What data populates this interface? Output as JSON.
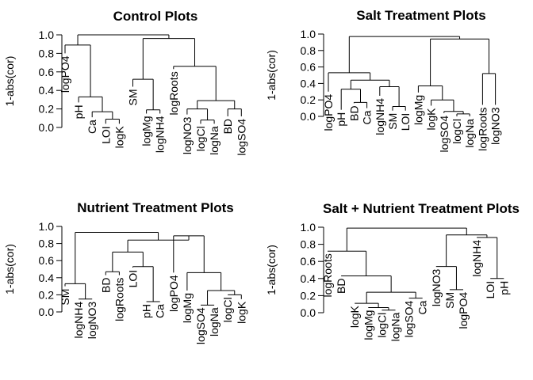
{
  "chart_data": [
    {
      "type": "dendrogram",
      "title": "Control Plots",
      "ylabel": "1-abs(cor)",
      "ylim": [
        0,
        1
      ],
      "yticks": [
        "0.0",
        "0.2",
        "0.4",
        "0.6",
        "0.8",
        "1.0"
      ],
      "leaves": [
        {
          "label": "logPO4",
          "height": 0.8
        },
        {
          "label": "pH",
          "height": 0.27
        },
        {
          "label": "Ca",
          "height": 0.11
        },
        {
          "label": "LOI",
          "height": 0.04
        },
        {
          "label": "logK",
          "height": 0.04
        },
        {
          "label": "SM",
          "height": 0.44
        },
        {
          "label": "logMg",
          "height": 0.15
        },
        {
          "label": "logNH4",
          "height": 0.15
        },
        {
          "label": "logRoots",
          "height": 0.63
        },
        {
          "label": "logNO3",
          "height": 0.14
        },
        {
          "label": "logCl",
          "height": 0.04
        },
        {
          "label": "logNa",
          "height": 0.04
        },
        {
          "label": "BD",
          "height": 0.12
        },
        {
          "label": "logSO4",
          "height": 0.12
        }
      ],
      "merges": [
        {
          "a": "L4",
          "b": "L5",
          "height": 0.09
        },
        {
          "a": "L3",
          "b": "m1",
          "height": 0.17
        },
        {
          "a": "L2",
          "b": "m2",
          "height": 0.33
        },
        {
          "a": "L1",
          "b": "m3",
          "height": 0.89
        },
        {
          "a": "L7",
          "b": "L8",
          "height": 0.19
        },
        {
          "a": "L6",
          "b": "m5",
          "height": 0.52
        },
        {
          "a": "L11",
          "b": "L12",
          "height": 0.08
        },
        {
          "a": "L13",
          "b": "L14",
          "height": 0.2
        },
        {
          "a": "L10",
          "b": "m7",
          "height": 0.2
        },
        {
          "a": "m9",
          "b": "m8",
          "height": 0.29
        },
        {
          "a": "L9",
          "b": "m10",
          "height": 0.66
        },
        {
          "a": "m6",
          "b": "m11",
          "height": 0.96
        },
        {
          "a": "m4",
          "b": "m12",
          "height": 1.0
        }
      ]
    },
    {
      "type": "dendrogram",
      "title": "Salt Treatment Plots",
      "ylabel": "1-abs(cor)",
      "ylim": [
        0,
        1
      ],
      "yticks": [
        "0.0",
        "0.2",
        "0.4",
        "0.6",
        "0.8",
        "1.0"
      ],
      "leaves": [
        {
          "label": "logPO4",
          "height": 0.3
        },
        {
          "label": "pH",
          "height": 0.08
        },
        {
          "label": "BD",
          "height": 0.16
        },
        {
          "label": "Ca",
          "height": 0.1
        },
        {
          "label": "logNH4",
          "height": 0.25
        },
        {
          "label": "SM",
          "height": 0.07
        },
        {
          "label": "LOI",
          "height": 0.07
        },
        {
          "label": "logMg",
          "height": 0.29
        },
        {
          "label": "logK",
          "height": 0.13
        },
        {
          "label": "logSO4",
          "height": 0.04
        },
        {
          "label": "logCl",
          "height": 0.0
        },
        {
          "label": "logNa",
          "height": 0.0
        },
        {
          "label": "logRoots",
          "height": 0.14
        },
        {
          "label": "logNO3",
          "height": 0.14
        }
      ],
      "merges": [
        {
          "a": "L3",
          "b": "L4",
          "height": 0.17
        },
        {
          "a": "L2",
          "b": "m1",
          "height": 0.33
        },
        {
          "a": "L6",
          "b": "L7",
          "height": 0.12
        },
        {
          "a": "L5",
          "b": "m3",
          "height": 0.36
        },
        {
          "a": "m2",
          "b": "m4",
          "height": 0.44
        },
        {
          "a": "L1",
          "b": "m5",
          "height": 0.53
        },
        {
          "a": "L11",
          "b": "L12",
          "height": 0.03
        },
        {
          "a": "L10",
          "b": "m7",
          "height": 0.06
        },
        {
          "a": "L9",
          "b": "m8",
          "height": 0.2
        },
        {
          "a": "L8",
          "b": "m9",
          "height": 0.37
        },
        {
          "a": "L13",
          "b": "L14",
          "height": 0.52
        },
        {
          "a": "m10",
          "b": "m11",
          "height": 0.94
        },
        {
          "a": "m6",
          "b": "m12",
          "height": 0.97
        }
      ]
    },
    {
      "type": "dendrogram",
      "title": "Nutrient Treatment Plots",
      "ylabel": "1-abs(cor)",
      "ylim": [
        0,
        1
      ],
      "yticks": [
        "0.0",
        "0.2",
        "0.4",
        "0.6",
        "0.8",
        "1.0"
      ],
      "leaves": [
        {
          "label": "SM",
          "height": 0.3
        },
        {
          "label": "logNH4",
          "height": 0.15
        },
        {
          "label": "logNO3",
          "height": 0.15
        },
        {
          "label": "BD",
          "height": 0.43
        },
        {
          "label": "logRoots",
          "height": 0.43
        },
        {
          "label": "LOI",
          "height": 0.52
        },
        {
          "label": "pH",
          "height": 0.12
        },
        {
          "label": "Ca",
          "height": 0.12
        },
        {
          "label": "logPO4",
          "height": 0.46
        },
        {
          "label": "logMg",
          "height": 0.25
        },
        {
          "label": "logSO4",
          "height": 0.08
        },
        {
          "label": "logNa",
          "height": 0.08
        },
        {
          "label": "logCl",
          "height": 0.2
        },
        {
          "label": "logK",
          "height": 0.15
        }
      ],
      "merges": [
        {
          "a": "L2",
          "b": "L3",
          "height": 0.15
        },
        {
          "a": "L1",
          "b": "m1",
          "height": 0.33
        },
        {
          "a": "L4",
          "b": "L5",
          "height": 0.47
        },
        {
          "a": "L7",
          "b": "L8",
          "height": 0.12
        },
        {
          "a": "L6",
          "b": "m4",
          "height": 0.53
        },
        {
          "a": "m3",
          "b": "m5",
          "height": 0.7
        },
        {
          "a": "L11",
          "b": "L12",
          "height": 0.08
        },
        {
          "a": "L13",
          "b": "L14",
          "height": 0.2
        },
        {
          "a": "m7",
          "b": "m8",
          "height": 0.25
        },
        {
          "a": "L10",
          "b": "m9",
          "height": 0.46
        },
        {
          "a": "L9",
          "b": "m10",
          "height": 0.89
        },
        {
          "a": "m6",
          "b": "m11",
          "height": 0.84
        },
        {
          "a": "m2",
          "b": "m12",
          "height": 0.93
        }
      ]
    },
    {
      "type": "dendrogram",
      "title": "Salt + Nutrient Treatment Plots",
      "ylabel": "1-abs(cor)",
      "ylim": [
        0,
        1
      ],
      "yticks": [
        "0.0",
        "0.2",
        "0.4",
        "0.6",
        "0.8",
        "1.0"
      ],
      "leaves": [
        {
          "label": "logRoots",
          "height": 0.72
        },
        {
          "label": "BD",
          "height": 0.43
        },
        {
          "label": "logK",
          "height": 0.11
        },
        {
          "label": "logMg",
          "height": 0.06
        },
        {
          "label": "logCl",
          "height": 0.03
        },
        {
          "label": "logNa",
          "height": 0.03
        },
        {
          "label": "logSO4",
          "height": 0.17
        },
        {
          "label": "Ca",
          "height": 0.17
        },
        {
          "label": "logNO3",
          "height": 0.54
        },
        {
          "label": "SM",
          "height": 0.27
        },
        {
          "label": "logPO4",
          "height": 0.27
        },
        {
          "label": "logNH4",
          "height": 0.88
        },
        {
          "label": "LOI",
          "height": 0.4
        },
        {
          "label": "pH",
          "height": 0.4
        }
      ],
      "merges": [
        {
          "a": "L5",
          "b": "L6",
          "height": 0.03
        },
        {
          "a": "L4",
          "b": "m1",
          "height": 0.06
        },
        {
          "a": "L3",
          "b": "m2",
          "height": 0.11
        },
        {
          "a": "L7",
          "b": "L8",
          "height": 0.17
        },
        {
          "a": "m3",
          "b": "m4",
          "height": 0.24
        },
        {
          "a": "L2",
          "b": "m5",
          "height": 0.43
        },
        {
          "a": "L1",
          "b": "m6",
          "height": 0.72
        },
        {
          "a": "L10",
          "b": "L11",
          "height": 0.27
        },
        {
          "a": "L9",
          "b": "m8",
          "height": 0.54
        },
        {
          "a": "L13",
          "b": "L14",
          "height": 0.4
        },
        {
          "a": "L12",
          "b": "m10",
          "height": 0.88
        },
        {
          "a": "m9",
          "b": "m11",
          "height": 0.91
        },
        {
          "a": "m7",
          "b": "m12",
          "height": 0.99
        }
      ]
    }
  ]
}
